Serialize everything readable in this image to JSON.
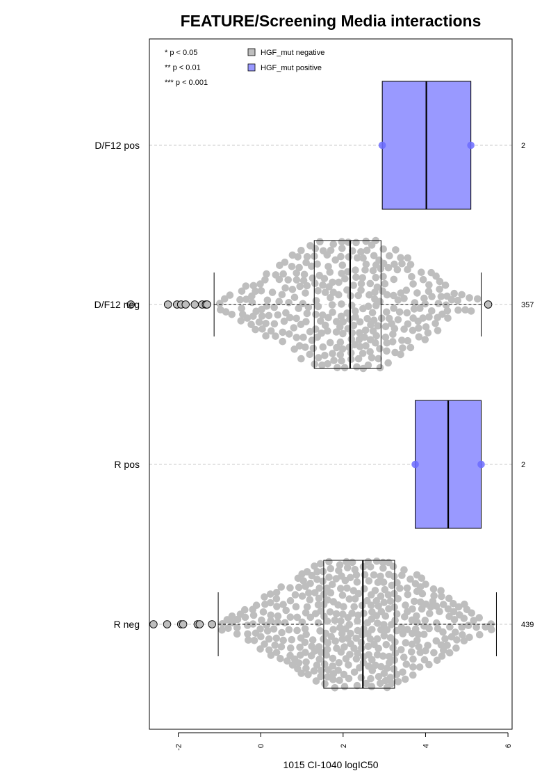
{
  "chart_data": {
    "type": "box",
    "title": "FEATURE/Screening Media interactions",
    "xlabel": "1015 CI-1040 logIC50",
    "xlim": [
      -2.7,
      6.1
    ],
    "x_ticks": [
      -2,
      0,
      2,
      4,
      6
    ],
    "categories": [
      "D/F12 pos",
      "D/F12 neg",
      "R pos",
      "R neg"
    ],
    "counts": [
      "2",
      "357",
      "2",
      "439"
    ],
    "legend": {
      "position": "top",
      "significance": [
        "* p < 0.05",
        "** p < 0.01",
        "*** p < 0.001"
      ],
      "groups": [
        {
          "name": "HGF_mut negative",
          "color": "#bebebe"
        },
        {
          "name": "HGF_mut positive",
          "color": "#9999ff"
        }
      ]
    },
    "boxes": [
      {
        "category": "D/F12 pos",
        "group": "HGF_mut positive",
        "color": "#9999ff",
        "whisker_low": 2.95,
        "q1": 2.95,
        "median": 4.02,
        "q3": 5.1,
        "whisker_high": 5.1,
        "points": [
          2.95,
          5.1
        ],
        "outliers": []
      },
      {
        "category": "D/F12 neg",
        "group": "HGF_mut negative",
        "color": "#bebebe",
        "whisker_low": -1.13,
        "q1": 1.3,
        "median": 2.17,
        "q3": 2.92,
        "whisker_high": 5.35,
        "outliers": [
          -3.15,
          -2.25,
          -2.03,
          -1.93,
          -1.82,
          -1.6,
          -1.42,
          -1.33,
          -1.3,
          5.52
        ]
      },
      {
        "category": "R pos",
        "group": "HGF_mut positive",
        "color": "#9999ff",
        "whisker_low": 3.75,
        "q1": 3.75,
        "median": 4.55,
        "q3": 5.35,
        "whisker_high": 5.35,
        "points": [
          3.75,
          5.35
        ],
        "outliers": []
      },
      {
        "category": "R neg",
        "group": "HGF_mut negative",
        "color": "#bebebe",
        "whisker_low": -1.03,
        "q1": 1.53,
        "median": 2.48,
        "q3": 3.25,
        "whisker_high": 5.72,
        "outliers": [
          -2.6,
          -2.27,
          -1.93,
          -1.88,
          -1.53,
          -1.48,
          -1.18
        ]
      }
    ]
  }
}
